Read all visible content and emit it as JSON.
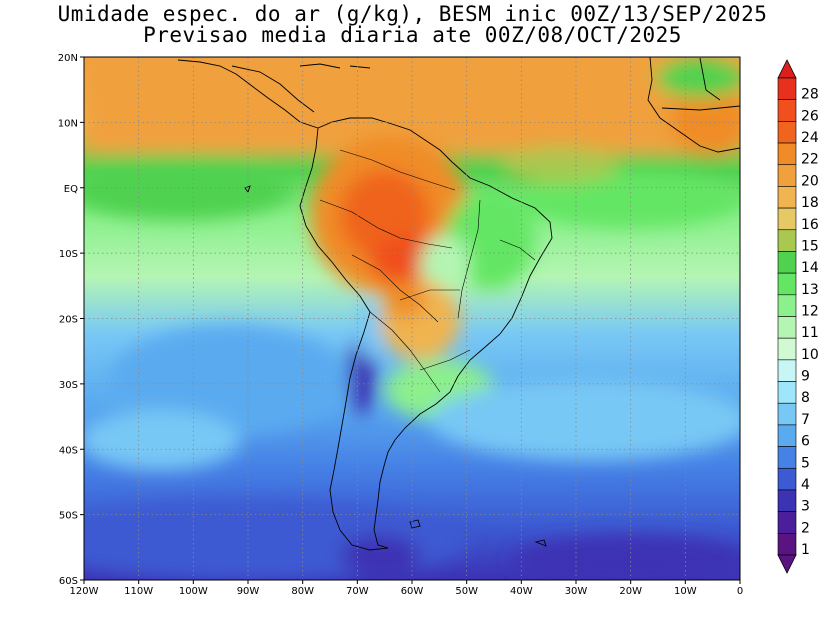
{
  "title": {
    "line1": "Umidade espec. do ar (g/kg), BESM inic 00Z/13/SEP/2025",
    "line2": "Previsao media diaria ate 00Z/08/OCT/2025"
  },
  "map": {
    "lon_range": [
      -120,
      0
    ],
    "lat_range": [
      -60,
      20
    ],
    "lon_ticks": [
      {
        "value": -120,
        "label": "120W"
      },
      {
        "value": -110,
        "label": "110W"
      },
      {
        "value": -100,
        "label": "100W"
      },
      {
        "value": -90,
        "label": "90W"
      },
      {
        "value": -80,
        "label": "80W"
      },
      {
        "value": -70,
        "label": "70W"
      },
      {
        "value": -60,
        "label": "60W"
      },
      {
        "value": -50,
        "label": "50W"
      },
      {
        "value": -40,
        "label": "40W"
      },
      {
        "value": -30,
        "label": "30W"
      },
      {
        "value": -20,
        "label": "20W"
      },
      {
        "value": -10,
        "label": "10W"
      },
      {
        "value": 0,
        "label": "0"
      }
    ],
    "lat_ticks": [
      {
        "value": 20,
        "label": "20N"
      },
      {
        "value": 10,
        "label": "10N"
      },
      {
        "value": 0,
        "label": "EQ"
      },
      {
        "value": -10,
        "label": "10S"
      },
      {
        "value": -20,
        "label": "20S"
      },
      {
        "value": -30,
        "label": "30S"
      },
      {
        "value": -40,
        "label": "40S"
      },
      {
        "value": -50,
        "label": "50S"
      },
      {
        "value": -60,
        "label": "60S"
      }
    ],
    "grid": "dotted"
  },
  "colorbar": {
    "levels": [
      {
        "label": "28",
        "color": "#e8301e"
      },
      {
        "label": "26",
        "color": "#f0501e"
      },
      {
        "label": "24",
        "color": "#f0641e"
      },
      {
        "label": "22",
        "color": "#f08c28"
      },
      {
        "label": "20",
        "color": "#f0a03c"
      },
      {
        "label": "18",
        "color": "#f0b450"
      },
      {
        "label": "16",
        "color": "#e6c864"
      },
      {
        "label": "15",
        "color": "#a8c850"
      },
      {
        "label": "14",
        "color": "#50d250"
      },
      {
        "label": "13",
        "color": "#64e664"
      },
      {
        "label": "12",
        "color": "#8cf08c"
      },
      {
        "label": "11",
        "color": "#b4f5b4"
      },
      {
        "label": "10",
        "color": "#d2fad2"
      },
      {
        "label": "9",
        "color": "#c8f5f5"
      },
      {
        "label": "8",
        "color": "#a0e6fa"
      },
      {
        "label": "7",
        "color": "#78c8f5"
      },
      {
        "label": "6",
        "color": "#5aaaf0"
      },
      {
        "label": "5",
        "color": "#4682e6"
      },
      {
        "label": "4",
        "color": "#3c5ad2"
      },
      {
        "label": "3",
        "color": "#3c32b4"
      },
      {
        "label": "2",
        "color": "#4b1e9b"
      },
      {
        "label": "1",
        "color": "#5a1482"
      }
    ],
    "top_arrow_color": "#dc1e1e",
    "bottom_arrow_color": "#5a1482"
  }
}
